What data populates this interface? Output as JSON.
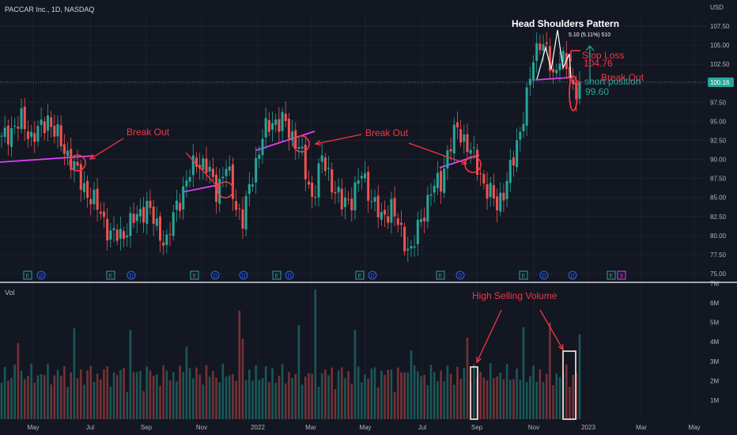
{
  "header": {
    "symbol_line": "PACCAR Inc., 1D, NASDAQ",
    "currency": "USD"
  },
  "volume_label": "Vol",
  "colors": {
    "up": "#26a69a",
    "down": "#ef5350",
    "bg": "#131722",
    "grid": "#1e222d",
    "annot": "#f23645",
    "trend": "#e040fb",
    "text": "#b2b5be",
    "price_tag": "#26a69a"
  },
  "chart_data": {
    "type": "candlestick",
    "title": "PACCAR Inc., 1D, NASDAQ",
    "price_axis": {
      "ticks": [
        "107.50",
        "105.00",
        "102.50",
        "100.00",
        "97.50",
        "95.00",
        "92.50",
        "90.00",
        "87.50",
        "85.00",
        "82.50",
        "80.00",
        "77.50",
        "75.00"
      ],
      "range": [
        74.6,
        110.0
      ]
    },
    "volume_axis": {
      "ticks": [
        "7M",
        "6M",
        "5M",
        "4M",
        "3M",
        "2M",
        "1M"
      ],
      "range": [
        0,
        7.2
      ]
    },
    "time_axis": [
      "May",
      "Jul",
      "Sep",
      "Nov",
      "2022",
      "Mar",
      "May",
      "Jul",
      "Sep",
      "Nov",
      "2023",
      "Mar",
      "May"
    ],
    "last_price": "100.16",
    "price_anchors": [
      [
        0,
        92.5
      ],
      [
        3,
        94
      ],
      [
        6,
        95
      ],
      [
        9,
        93
      ],
      [
        12,
        94
      ],
      [
        14,
        95.5
      ],
      [
        18,
        92
      ],
      [
        21,
        90
      ],
      [
        24,
        87
      ],
      [
        27,
        85
      ],
      [
        30,
        83
      ],
      [
        33,
        80
      ],
      [
        36,
        80
      ],
      [
        40,
        82
      ],
      [
        44,
        84
      ],
      [
        47,
        81
      ],
      [
        50,
        79
      ],
      [
        53,
        84
      ],
      [
        56,
        87
      ],
      [
        59,
        90
      ],
      [
        62,
        89
      ],
      [
        65,
        86
      ],
      [
        68,
        89
      ],
      [
        71,
        84
      ],
      [
        73,
        82
      ],
      [
        76,
        88
      ],
      [
        79,
        93
      ],
      [
        82,
        95
      ],
      [
        85,
        95
      ],
      [
        88,
        93
      ],
      [
        90,
        92
      ],
      [
        92,
        88
      ],
      [
        94,
        85
      ],
      [
        97,
        90
      ],
      [
        100,
        87
      ],
      [
        103,
        84
      ],
      [
        106,
        85
      ],
      [
        109,
        88
      ],
      [
        112,
        85
      ],
      [
        115,
        82
      ],
      [
        118,
        84
      ],
      [
        121,
        80
      ],
      [
        124,
        78
      ],
      [
        127,
        82
      ],
      [
        130,
        86
      ],
      [
        133,
        87
      ],
      [
        135,
        91
      ],
      [
        138,
        94
      ],
      [
        141,
        92
      ],
      [
        144,
        89
      ],
      [
        147,
        86
      ],
      [
        150,
        84
      ],
      [
        153,
        87
      ],
      [
        155,
        90
      ],
      [
        157,
        94
      ],
      [
        159,
        98
      ],
      [
        161,
        103
      ],
      [
        163,
        106
      ],
      [
        165,
        104
      ],
      [
        167,
        100.5
      ],
      [
        169,
        104
      ],
      [
        171,
        102
      ],
      [
        173,
        99
      ],
      [
        175,
        100.16
      ]
    ],
    "annotations": [
      {
        "text": "Break Out"
      },
      {
        "text": "Break Out"
      },
      {
        "text": "Head Shoulders Pattern"
      },
      {
        "text": "5.10 (5.11%) 510"
      },
      {
        "text": "Stop Loss"
      },
      {
        "text": "104.76"
      },
      {
        "text": "Break Out"
      },
      {
        "text": "short position"
      },
      {
        "text": "99.60"
      },
      {
        "text": "High Selling Volume"
      }
    ],
    "event_markers": [
      "E",
      "D",
      "E",
      "D",
      "E",
      "D",
      "D",
      "E",
      "D",
      "E",
      "D",
      "E",
      "D",
      "E",
      "D",
      "D",
      "E",
      "S"
    ]
  }
}
